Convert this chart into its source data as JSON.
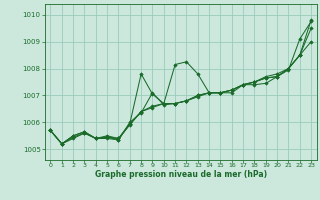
{
  "title": "Graphe pression niveau de la mer (hPa)",
  "bg_color": "#cce8dd",
  "grid_color": "#99ccbb",
  "line_color": "#1a6b2a",
  "marker_color": "#1a6b2a",
  "xlim": [
    -0.5,
    23.5
  ],
  "ylim": [
    1004.6,
    1010.4
  ],
  "yticks": [
    1005,
    1006,
    1007,
    1008,
    1009,
    1010
  ],
  "xticks": [
    0,
    1,
    2,
    3,
    4,
    5,
    6,
    7,
    8,
    9,
    10,
    11,
    12,
    13,
    14,
    15,
    16,
    17,
    18,
    19,
    20,
    21,
    22,
    23
  ],
  "series": [
    [
      1005.7,
      1005.2,
      1005.4,
      1005.6,
      1005.4,
      1005.45,
      1005.4,
      1005.95,
      1007.8,
      1007.05,
      1006.7,
      1008.15,
      1008.25,
      1007.8,
      1007.1,
      1007.1,
      1007.1,
      1007.4,
      1007.4,
      1007.45,
      1007.7,
      1007.95,
      1009.1,
      1009.75
    ],
    [
      1005.7,
      1005.2,
      1005.45,
      1005.6,
      1005.4,
      1005.45,
      1005.35,
      1005.95,
      1006.4,
      1006.55,
      1006.7,
      1006.7,
      1006.8,
      1006.95,
      1007.1,
      1007.1,
      1007.2,
      1007.4,
      1007.5,
      1007.65,
      1007.7,
      1008.0,
      1008.5,
      1009.0
    ],
    [
      1005.7,
      1005.2,
      1005.5,
      1005.65,
      1005.4,
      1005.4,
      1005.35,
      1006.0,
      1006.35,
      1007.1,
      1006.65,
      1006.7,
      1006.8,
      1007.0,
      1007.1,
      1007.1,
      1007.2,
      1007.4,
      1007.5,
      1007.65,
      1007.7,
      1008.0,
      1008.5,
      1009.5
    ],
    [
      1005.7,
      1005.2,
      1005.5,
      1005.65,
      1005.4,
      1005.5,
      1005.4,
      1005.9,
      1006.4,
      1006.6,
      1006.7,
      1006.7,
      1006.8,
      1007.0,
      1007.1,
      1007.1,
      1007.2,
      1007.4,
      1007.5,
      1007.7,
      1007.8,
      1008.0,
      1008.5,
      1009.8
    ]
  ]
}
